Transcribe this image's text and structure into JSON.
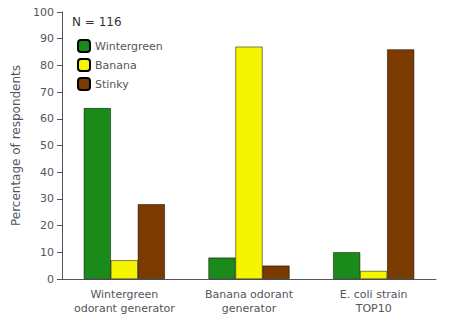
{
  "chart_data": {
    "type": "bar",
    "categories": [
      "Wintergreen\nodorant generator",
      "Banana odorant\ngenerator",
      "E. coli strain\nTOP10"
    ],
    "series": [
      {
        "name": "Wintergreen",
        "color": "#1a8a1a",
        "values": [
          64,
          8,
          10
        ]
      },
      {
        "name": "Banana",
        "color": "#f5f500",
        "values": [
          7,
          87,
          3
        ]
      },
      {
        "name": "Stinky",
        "color": "#7a3a00",
        "values": [
          28,
          5,
          86
        ]
      }
    ],
    "ylabel": "Percentage of respondents",
    "annotation": "N = 116",
    "ylim": [
      0,
      100
    ],
    "yticks": [
      0,
      10,
      20,
      30,
      40,
      50,
      60,
      70,
      80,
      90,
      100
    ],
    "grid": false,
    "legend": "upper left"
  }
}
